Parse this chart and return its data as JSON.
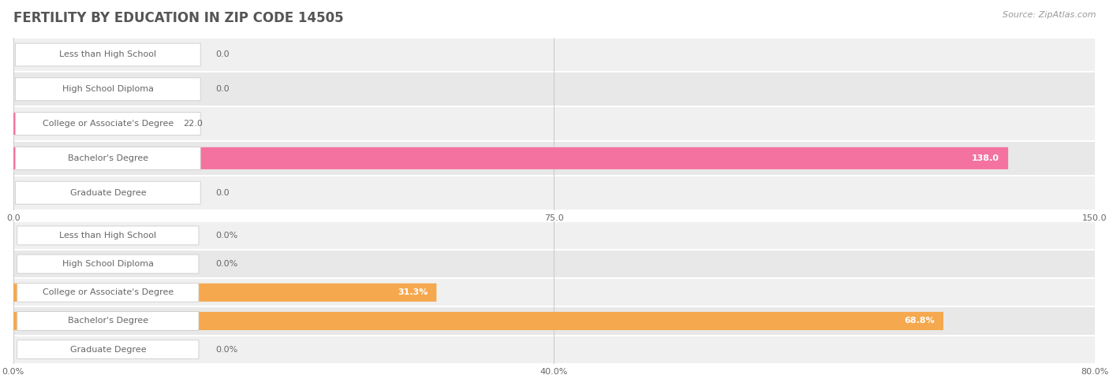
{
  "title": "FERTILITY BY EDUCATION IN ZIP CODE 14505",
  "source": "Source: ZipAtlas.com",
  "top_chart": {
    "categories": [
      "Less than High School",
      "High School Diploma",
      "College or Associate's Degree",
      "Bachelor's Degree",
      "Graduate Degree"
    ],
    "values": [
      0.0,
      0.0,
      22.0,
      138.0,
      0.0
    ],
    "xlim": [
      0,
      150
    ],
    "xticks": [
      0.0,
      75.0,
      150.0
    ],
    "xtick_labels": [
      "0.0",
      "75.0",
      "150.0"
    ],
    "bar_color": "#F472A0",
    "label_text_color": "#666666",
    "value_color_inside": "#FFFFFF",
    "value_color_outside": "#666666",
    "row_bg_colors": [
      "#F0F0F0",
      "#E8E8E8",
      "#F0F0F0",
      "#E8E8E8",
      "#F0F0F0"
    ]
  },
  "bottom_chart": {
    "categories": [
      "Less than High School",
      "High School Diploma",
      "College or Associate's Degree",
      "Bachelor's Degree",
      "Graduate Degree"
    ],
    "values": [
      0.0,
      0.0,
      31.3,
      68.8,
      0.0
    ],
    "xlim": [
      0,
      80
    ],
    "xticks": [
      0.0,
      40.0,
      80.0
    ],
    "xtick_labels": [
      "0.0%",
      "40.0%",
      "80.0%"
    ],
    "bar_color": "#F5A84E",
    "label_text_color": "#666666",
    "value_color_inside": "#FFFFFF",
    "value_color_outside": "#666666",
    "row_bg_colors": [
      "#F0F0F0",
      "#E8E8E8",
      "#F0F0F0",
      "#E8E8E8",
      "#F0F0F0"
    ]
  },
  "font_color_title": "#555555",
  "font_color_source": "#999999",
  "title_fontsize": 12,
  "label_fontsize": 8,
  "value_fontsize": 8,
  "tick_fontsize": 8
}
